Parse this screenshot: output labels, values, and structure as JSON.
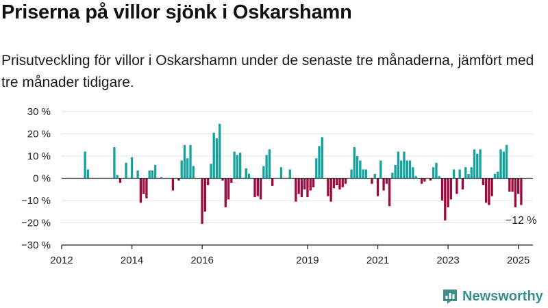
{
  "header": {
    "title": "Priserna på villor sjönk i Oskarshamn",
    "subtitle": "Prisutveckling för villor i Oskarshamn under de senaste tre månaderna, jämfört med tre månader tidigare."
  },
  "brand": {
    "name": "Newsworthy",
    "icon": "newsworthy-logo-icon",
    "color": "#3a8f86"
  },
  "colors": {
    "positive": "#12a39c",
    "negative": "#9c0a3e",
    "grid": "#e3e3e3",
    "axis": "#222222"
  },
  "chart_data": {
    "type": "bar",
    "title": "",
    "xlabel": "",
    "ylabel": "",
    "ylim": [
      -30,
      30
    ],
    "y_ticks": [
      -30,
      -20,
      -10,
      0,
      10,
      20,
      30
    ],
    "y_tick_labels": [
      "−30 %",
      "−20 %",
      "−10 %",
      "0 %",
      "10 %",
      "20 %",
      "30 %"
    ],
    "xlim": [
      "2012-01",
      "2025-06"
    ],
    "x_ticks": [
      "2012-01",
      "2014-01",
      "2016-01",
      "2019-01",
      "2021-01",
      "2023-01",
      "2025-01"
    ],
    "x_tick_labels": [
      "2012",
      "2014",
      "2016",
      "2019",
      "2021",
      "2023",
      "2025"
    ],
    "grid": true,
    "annotation": {
      "month": "2025-01",
      "text": "−12 %"
    },
    "series": [
      {
        "values": [
          [
            "2012-09",
            12
          ],
          [
            "2012-10",
            4
          ],
          [
            "2013-07",
            14
          ],
          [
            "2013-08",
            1.5
          ],
          [
            "2013-09",
            -2
          ],
          [
            "2013-11",
            7
          ],
          [
            "2014-01",
            9.5
          ],
          [
            "2014-03",
            3.5
          ],
          [
            "2014-04",
            -11
          ],
          [
            "2014-05",
            -7
          ],
          [
            "2014-06",
            -9
          ],
          [
            "2014-07",
            3.5
          ],
          [
            "2014-08",
            3.5
          ],
          [
            "2014-09",
            6
          ],
          [
            "2014-11",
            0.5
          ],
          [
            "2015-03",
            -5.5
          ],
          [
            "2015-05",
            -1
          ],
          [
            "2015-06",
            8
          ],
          [
            "2015-07",
            15
          ],
          [
            "2015-08",
            9
          ],
          [
            "2015-09",
            15
          ],
          [
            "2015-10",
            5.5
          ],
          [
            "2016-01",
            -20.5
          ],
          [
            "2016-02",
            -15
          ],
          [
            "2016-03",
            -3
          ],
          [
            "2016-04",
            6.5
          ],
          [
            "2016-05",
            20.5
          ],
          [
            "2016-06",
            18
          ],
          [
            "2016-07",
            24.5
          ],
          [
            "2016-08",
            -1
          ],
          [
            "2016-09",
            -13
          ],
          [
            "2016-10",
            -9.5
          ],
          [
            "2016-11",
            -2
          ],
          [
            "2016-12",
            12
          ],
          [
            "2017-01",
            10.5
          ],
          [
            "2017-02",
            11.5
          ],
          [
            "2017-04",
            4.5
          ],
          [
            "2017-05",
            2
          ],
          [
            "2017-07",
            -8.5
          ],
          [
            "2017-08",
            -8
          ],
          [
            "2017-09",
            -9.5
          ],
          [
            "2017-10",
            5.5
          ],
          [
            "2017-11",
            10.5
          ],
          [
            "2017-12",
            13
          ],
          [
            "2018-01",
            -3.5
          ],
          [
            "2018-04",
            5
          ],
          [
            "2018-07",
            4
          ],
          [
            "2018-09",
            -10.5
          ],
          [
            "2018-10",
            -7
          ],
          [
            "2018-11",
            -8.5
          ],
          [
            "2018-12",
            -5
          ],
          [
            "2019-01",
            -8.5
          ],
          [
            "2019-02",
            -5.5
          ],
          [
            "2019-03",
            -4
          ],
          [
            "2019-04",
            9
          ],
          [
            "2019-05",
            14.5
          ],
          [
            "2019-06",
            18.5
          ],
          [
            "2019-08",
            -8
          ],
          [
            "2019-09",
            -10.5
          ],
          [
            "2019-10",
            -4.5
          ],
          [
            "2019-11",
            -3
          ],
          [
            "2019-12",
            -5
          ],
          [
            "2020-01",
            -4
          ],
          [
            "2020-02",
            -2.5
          ],
          [
            "2020-04",
            4
          ],
          [
            "2020-05",
            14
          ],
          [
            "2020-06",
            10
          ],
          [
            "2020-07",
            8
          ],
          [
            "2020-08",
            4
          ],
          [
            "2020-09",
            4
          ],
          [
            "2020-11",
            -2.5
          ],
          [
            "2020-12",
            2
          ],
          [
            "2021-01",
            -8
          ],
          [
            "2021-02",
            8
          ],
          [
            "2021-03",
            -5.5
          ],
          [
            "2021-04",
            -2.5
          ],
          [
            "2021-05",
            -12.5
          ],
          [
            "2021-06",
            2.5
          ],
          [
            "2021-07",
            6
          ],
          [
            "2021-08",
            12
          ],
          [
            "2021-09",
            8
          ],
          [
            "2021-10",
            12
          ],
          [
            "2021-11",
            8
          ],
          [
            "2021-12",
            8
          ],
          [
            "2022-01",
            5
          ],
          [
            "2022-02",
            1
          ],
          [
            "2022-04",
            -2.5
          ],
          [
            "2022-05",
            -1.5
          ],
          [
            "2022-07",
            -1
          ],
          [
            "2022-08",
            5
          ],
          [
            "2022-09",
            7
          ],
          [
            "2022-10",
            1
          ],
          [
            "2022-11",
            -10
          ],
          [
            "2022-12",
            -19
          ],
          [
            "2023-01",
            -13
          ],
          [
            "2023-02",
            -9.5
          ],
          [
            "2023-03",
            4
          ],
          [
            "2023-04",
            -7
          ],
          [
            "2023-05",
            4
          ],
          [
            "2023-06",
            -5
          ],
          [
            "2023-07",
            5
          ],
          [
            "2023-08",
            2
          ],
          [
            "2023-09",
            5
          ],
          [
            "2023-10",
            13
          ],
          [
            "2023-11",
            11
          ],
          [
            "2023-12",
            13
          ],
          [
            "2024-01",
            -3
          ],
          [
            "2024-02",
            -11
          ],
          [
            "2024-03",
            -12
          ],
          [
            "2024-04",
            -8
          ],
          [
            "2024-05",
            2
          ],
          [
            "2024-06",
            3
          ],
          [
            "2024-07",
            13
          ],
          [
            "2024-08",
            12
          ],
          [
            "2024-09",
            15
          ],
          [
            "2024-10",
            -6
          ],
          [
            "2024-11",
            -6
          ],
          [
            "2024-12",
            -13
          ],
          [
            "2025-01",
            -7
          ],
          [
            "2025-02",
            -12
          ]
        ]
      }
    ]
  }
}
